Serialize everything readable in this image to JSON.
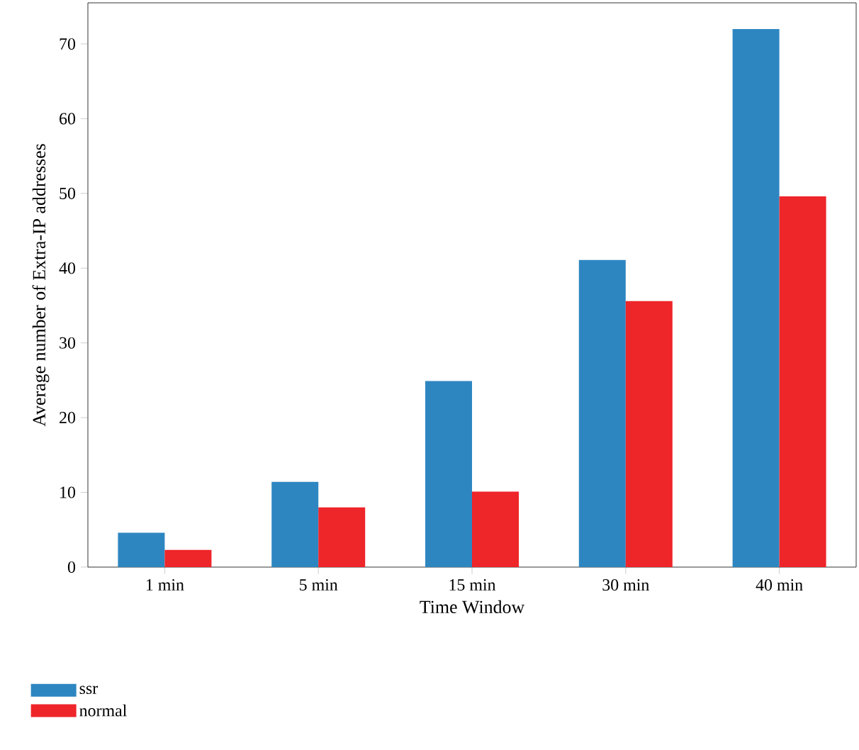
{
  "chart_data": {
    "type": "bar",
    "xlabel": "Time Window",
    "ylabel": "Average number of Extra-IP addresses",
    "categories": [
      "1 min",
      "5 min",
      "15 min",
      "30 min",
      "40 min"
    ],
    "series": [
      {
        "name": "ssr",
        "color": "#2e86c1",
        "values": [
          4.6,
          11.4,
          24.9,
          41.1,
          72.0
        ]
      },
      {
        "name": "normal",
        "color": "#ee2529",
        "values": [
          2.3,
          8.0,
          10.1,
          35.6,
          49.6
        ]
      }
    ],
    "ylim": [
      0,
      75.5
    ],
    "yticks": [
      0,
      10,
      20,
      30,
      40,
      50,
      60,
      70
    ],
    "grid": false,
    "legend": "bottom left"
  }
}
